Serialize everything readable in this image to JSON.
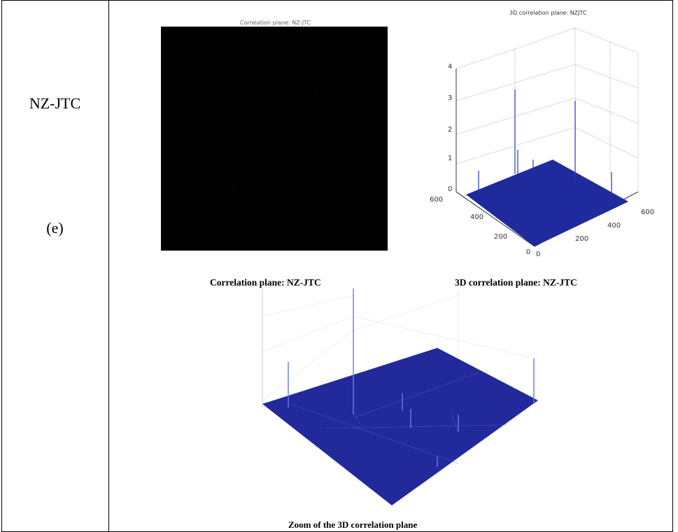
{
  "table": {
    "row_label": "NZ-JTC",
    "row_letter": "(e)"
  },
  "figure_2d": {
    "title": "Correlation plane: NZ-JTC",
    "caption": "Correlation plane: NZ-JTC",
    "background": "#000000"
  },
  "figure_3d": {
    "title": "3D correlation plane: NZJTC",
    "caption": "3D  correlation plane: NZ-JTC",
    "z_ticks": [
      "0",
      "1",
      "2",
      "3",
      "4"
    ],
    "left_axis_ticks": [
      "600",
      "400",
      "200",
      "0"
    ],
    "right_axis_ticks": [
      "0",
      "200",
      "400",
      "600"
    ],
    "surface_color": "#1f2a9c"
  },
  "figure_zoom": {
    "caption": "Zoom of the 3D  correlation plane",
    "surface_color": "#22299a"
  }
}
